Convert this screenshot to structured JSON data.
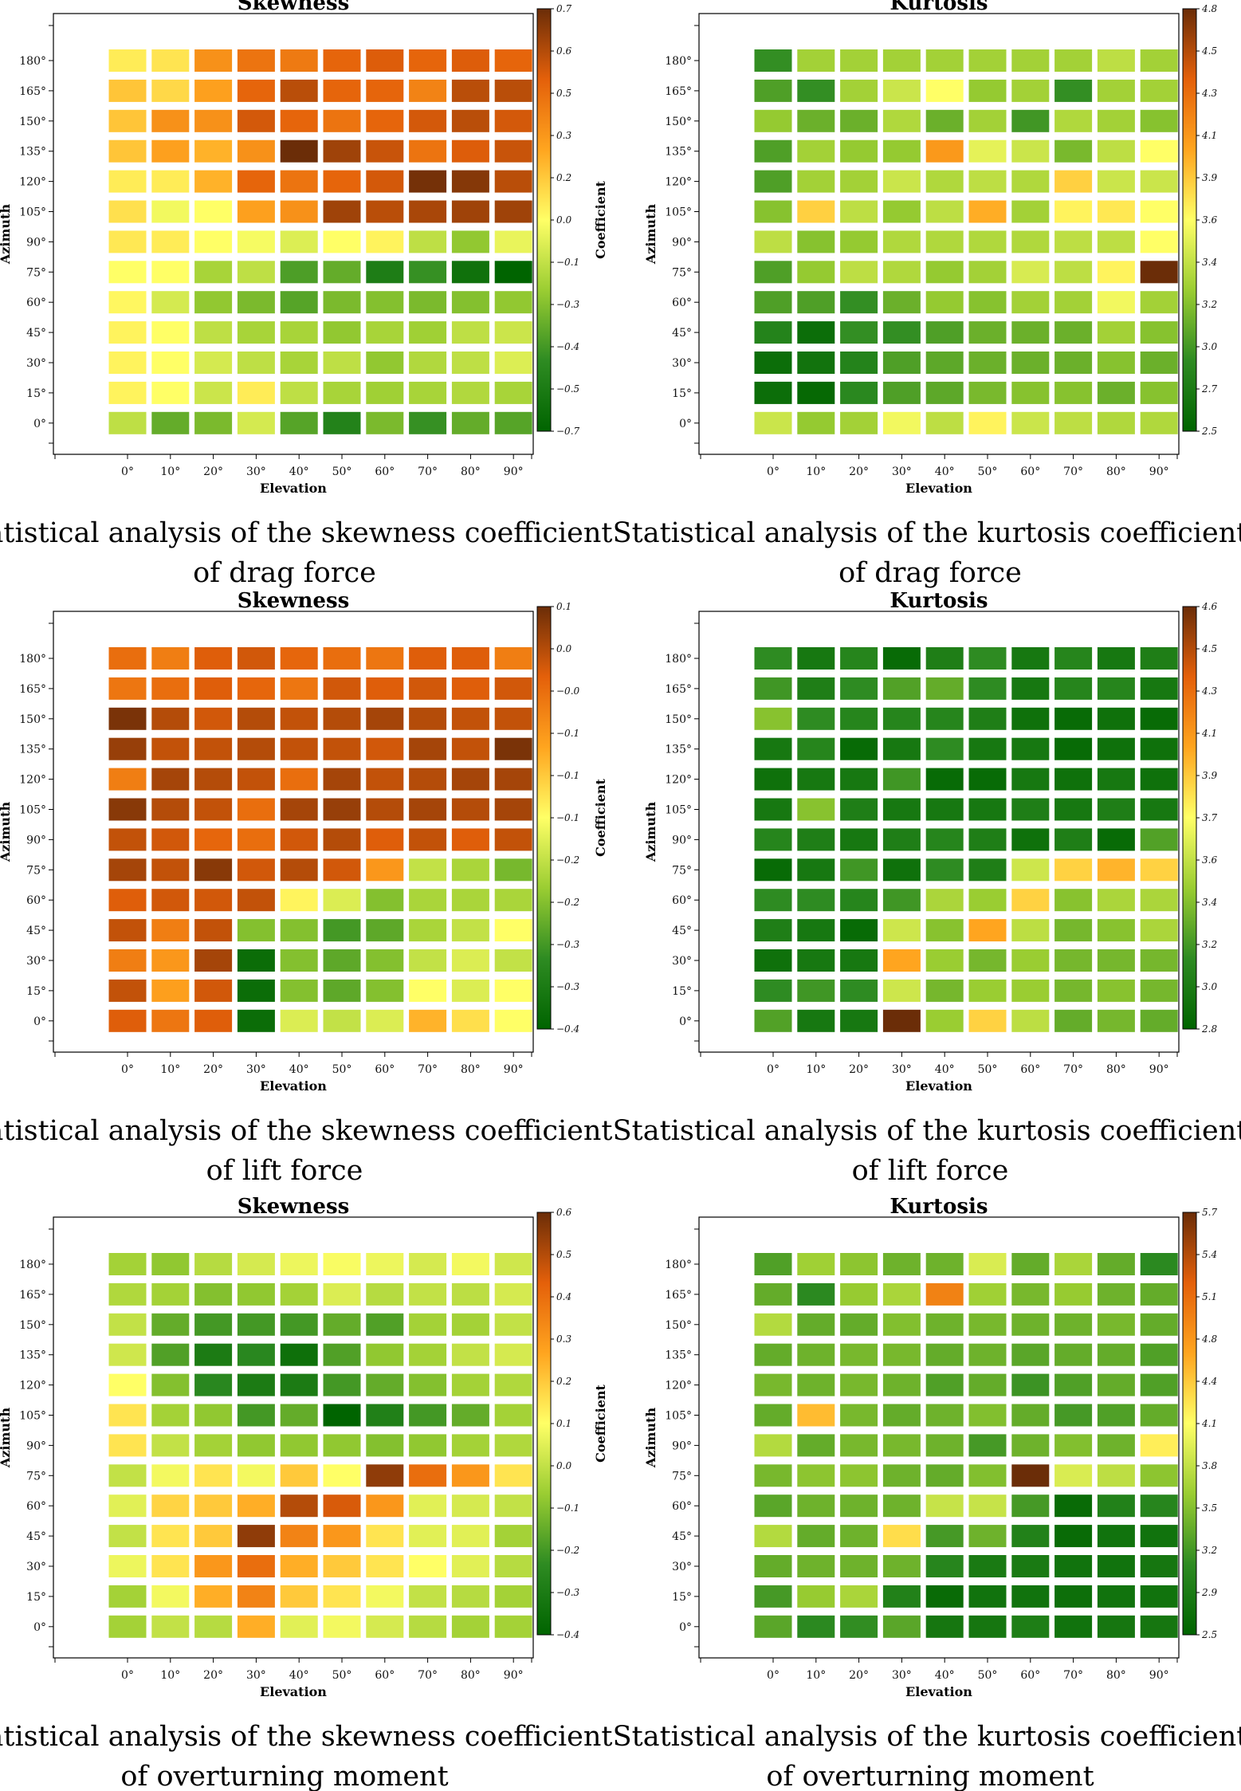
{
  "colors": [
    "#006400",
    "#2E8B22",
    "#9ACD32",
    "#FFFF66",
    "#FFA51F",
    "#E4600A",
    "#6B2D08"
  ],
  "chart_data": [
    {
      "type": "heatmap",
      "title": "Skewness",
      "xlabel": "Elevation",
      "ylabel": "Azimuth",
      "colorbar_label": "Coefficient",
      "x_ticks": [
        "0°",
        "10°",
        "20°",
        "30°",
        "40°",
        "50°",
        "60°",
        "70°",
        "80°",
        "90°"
      ],
      "y_ticks": [
        "180°",
        "165°",
        "150°",
        "135°",
        "120°",
        "105°",
        "90°",
        "75°",
        "60°",
        "45°",
        "30°",
        "15°",
        "0°"
      ],
      "colorbar_ticks": [
        "0.7",
        "0.6",
        "0.5",
        "0.3",
        "0.2",
        "0.0",
        "−0.1",
        "−0.3",
        "−0.4",
        "−0.5",
        "−0.7"
      ],
      "vmin": -0.7,
      "vmax": 0.7,
      "values": [
        [
          0.05,
          0.07,
          0.3,
          0.4,
          0.38,
          0.45,
          0.48,
          0.45,
          0.48,
          0.45
        ],
        [
          0.15,
          0.1,
          0.25,
          0.45,
          0.55,
          0.45,
          0.45,
          0.35,
          0.55,
          0.55
        ],
        [
          0.15,
          0.3,
          0.3,
          0.5,
          0.45,
          0.4,
          0.45,
          0.5,
          0.55,
          0.5
        ],
        [
          0.15,
          0.25,
          0.2,
          0.3,
          0.7,
          0.6,
          0.52,
          0.4,
          0.48,
          0.52
        ],
        [
          0.05,
          0.05,
          0.2,
          0.45,
          0.4,
          0.45,
          0.5,
          0.68,
          0.65,
          0.55
        ],
        [
          0.08,
          -0.03,
          0.0,
          0.25,
          0.3,
          0.6,
          0.55,
          0.58,
          0.6,
          0.6
        ],
        [
          0.06,
          0.05,
          0.0,
          -0.02,
          -0.08,
          0.0,
          0.03,
          -0.15,
          -0.25,
          -0.05
        ],
        [
          0.0,
          0.0,
          -0.2,
          -0.15,
          -0.4,
          -0.35,
          -0.55,
          -0.45,
          -0.62,
          -0.7
        ],
        [
          0.02,
          -0.1,
          -0.25,
          -0.3,
          -0.38,
          -0.3,
          -0.28,
          -0.3,
          -0.28,
          -0.25
        ],
        [
          0.03,
          0.0,
          -0.15,
          -0.2,
          -0.2,
          -0.25,
          -0.2,
          -0.22,
          -0.15,
          -0.12
        ],
        [
          0.03,
          0.0,
          -0.1,
          -0.15,
          -0.2,
          -0.15,
          -0.25,
          -0.18,
          -0.15,
          -0.08
        ],
        [
          0.03,
          0.0,
          -0.12,
          0.05,
          -0.15,
          -0.2,
          -0.22,
          -0.2,
          -0.18,
          -0.2
        ],
        [
          -0.15,
          -0.35,
          -0.3,
          -0.1,
          -0.38,
          -0.52,
          -0.3,
          -0.45,
          -0.35,
          -0.38
        ]
      ],
      "caption": [
        "Statistical analysis of the skewness coefficient",
        "of drag force"
      ]
    },
    {
      "type": "heatmap",
      "title": "Kurtosis",
      "xlabel": "Elevation",
      "ylabel": "Azimuth",
      "colorbar_label": "Coefficient",
      "x_ticks": [
        "0°",
        "10°",
        "20°",
        "30°",
        "40°",
        "50°",
        "60°",
        "70°",
        "80°",
        "90°"
      ],
      "y_ticks": [
        "180°",
        "165°",
        "150°",
        "135°",
        "120°",
        "105°",
        "90°",
        "75°",
        "60°",
        "45°",
        "30°",
        "15°",
        "0°"
      ],
      "colorbar_ticks": [
        "4.8",
        "4.5",
        "4.3",
        "4.1",
        "3.9",
        "3.6",
        "3.4",
        "3.2",
        "3.0",
        "2.7",
        "2.5"
      ],
      "vmin": 2.5,
      "vmax": 4.8,
      "values": [
        [
          2.9,
          3.3,
          3.3,
          3.3,
          3.3,
          3.3,
          3.3,
          3.3,
          3.4,
          3.3
        ],
        [
          3.0,
          2.9,
          3.3,
          3.45,
          3.65,
          3.25,
          3.3,
          2.9,
          3.3,
          3.3
        ],
        [
          3.25,
          3.1,
          3.1,
          3.35,
          3.1,
          3.3,
          2.95,
          3.35,
          3.3,
          3.2
        ],
        [
          3.0,
          3.3,
          3.25,
          3.25,
          4.1,
          3.55,
          3.45,
          3.15,
          3.4,
          3.65
        ],
        [
          3.0,
          3.3,
          3.3,
          3.45,
          3.35,
          3.4,
          3.35,
          3.85,
          3.45,
          3.45
        ],
        [
          3.2,
          3.85,
          3.4,
          3.25,
          3.4,
          4.0,
          3.3,
          3.7,
          3.75,
          3.65
        ],
        [
          3.4,
          3.2,
          3.25,
          3.35,
          3.35,
          3.35,
          3.35,
          3.4,
          3.4,
          3.65
        ],
        [
          3.0,
          3.25,
          3.4,
          3.35,
          3.25,
          3.3,
          3.5,
          3.4,
          3.7,
          4.8
        ],
        [
          3.0,
          3.0,
          2.9,
          3.1,
          3.25,
          3.2,
          3.3,
          3.3,
          3.6,
          3.3
        ],
        [
          2.8,
          2.6,
          2.9,
          2.9,
          3.0,
          3.1,
          3.1,
          3.1,
          3.3,
          3.2
        ],
        [
          2.6,
          2.65,
          2.8,
          3.0,
          3.05,
          3.1,
          3.1,
          3.1,
          3.2,
          3.1
        ],
        [
          2.6,
          2.55,
          2.85,
          3.0,
          3.05,
          3.15,
          3.2,
          3.2,
          3.1,
          3.2
        ],
        [
          3.45,
          3.25,
          3.3,
          3.6,
          3.4,
          3.7,
          3.45,
          3.4,
          3.35,
          3.35
        ]
      ],
      "caption": [
        "Statistical analysis of the kurtosis coefficient",
        "of drag force"
      ]
    },
    {
      "type": "heatmap",
      "title": "Skewness",
      "xlabel": "Elevation",
      "ylabel": "Azimuth",
      "colorbar_label": "Coefficient",
      "x_ticks": [
        "0°",
        "10°",
        "20°",
        "30°",
        "40°",
        "50°",
        "60°",
        "70°",
        "80°",
        "90°"
      ],
      "y_ticks": [
        "180°",
        "165°",
        "150°",
        "135°",
        "120°",
        "105°",
        "90°",
        "75°",
        "60°",
        "45°",
        "30°",
        "15°",
        "0°"
      ],
      "colorbar_ticks": [
        "0.1",
        "0.0",
        "−0.0",
        "−0.1",
        "−0.1",
        "−0.1",
        "−0.2",
        "−0.2",
        "−0.3",
        "−0.3",
        "−0.4"
      ],
      "vmin": -0.4,
      "vmax": 0.1,
      "values": [
        [
          0.0,
          -0.02,
          0.02,
          0.03,
          0.01,
          0.0,
          -0.01,
          0.02,
          0.02,
          -0.02
        ],
        [
          -0.01,
          0.0,
          0.02,
          0.01,
          -0.01,
          0.03,
          0.02,
          0.03,
          0.02,
          0.03
        ],
        [
          0.09,
          0.05,
          0.03,
          0.05,
          0.04,
          0.05,
          0.06,
          0.05,
          0.04,
          0.04
        ],
        [
          0.07,
          0.04,
          0.04,
          0.05,
          0.04,
          0.04,
          0.03,
          0.06,
          0.04,
          0.09
        ],
        [
          -0.02,
          0.06,
          0.05,
          0.04,
          0.0,
          0.06,
          0.04,
          0.05,
          0.06,
          0.06
        ],
        [
          0.08,
          0.05,
          0.04,
          0.0,
          0.06,
          0.07,
          0.05,
          0.06,
          0.05,
          0.06
        ],
        [
          0.04,
          0.03,
          0.01,
          0.0,
          0.03,
          0.05,
          0.02,
          0.04,
          0.02,
          0.04
        ],
        [
          0.06,
          0.04,
          0.08,
          0.03,
          0.05,
          0.03,
          -0.05,
          -0.2,
          -0.22,
          -0.26
        ],
        [
          0.02,
          0.03,
          0.03,
          0.04,
          -0.14,
          -0.18,
          -0.25,
          -0.22,
          -0.22,
          -0.22
        ],
        [
          0.04,
          -0.02,
          0.04,
          -0.25,
          -0.25,
          -0.3,
          -0.28,
          -0.22,
          -0.2,
          -0.15
        ],
        [
          -0.02,
          -0.05,
          0.06,
          -0.38,
          -0.25,
          -0.28,
          -0.25,
          -0.2,
          -0.18,
          -0.2
        ],
        [
          0.04,
          -0.06,
          0.03,
          -0.38,
          -0.25,
          -0.28,
          -0.25,
          -0.15,
          -0.18,
          -0.15
        ],
        [
          0.02,
          -0.01,
          0.02,
          -0.38,
          -0.18,
          -0.2,
          -0.18,
          -0.08,
          -0.12,
          -0.15
        ]
      ],
      "caption": [
        "Statistical analysis of the skewness coefficient",
        "of lift force"
      ]
    },
    {
      "type": "heatmap",
      "title": "Kurtosis",
      "xlabel": "Elevation",
      "ylabel": "Azimuth",
      "colorbar_label": "Coefficient",
      "x_ticks": [
        "0°",
        "10°",
        "20°",
        "30°",
        "40°",
        "50°",
        "60°",
        "70°",
        "80°",
        "90°"
      ],
      "y_ticks": [
        "180°",
        "165°",
        "150°",
        "135°",
        "120°",
        "105°",
        "90°",
        "75°",
        "60°",
        "45°",
        "30°",
        "15°",
        "0°"
      ],
      "colorbar_ticks": [
        "4.6",
        "4.5",
        "4.3",
        "4.1",
        "3.9",
        "3.7",
        "3.6",
        "3.4",
        "3.2",
        "3.0",
        "2.8"
      ],
      "vmin": 2.8,
      "vmax": 4.6,
      "values": [
        [
          3.1,
          2.95,
          3.05,
          2.85,
          3.0,
          3.1,
          2.95,
          3.05,
          2.95,
          3.0
        ],
        [
          3.15,
          3.0,
          3.1,
          3.2,
          3.25,
          3.1,
          2.95,
          3.05,
          3.05,
          2.95
        ],
        [
          3.35,
          3.1,
          3.05,
          3.05,
          3.05,
          3.0,
          2.9,
          2.85,
          2.9,
          2.85
        ],
        [
          2.95,
          3.05,
          2.85,
          2.95,
          3.1,
          2.95,
          2.95,
          2.85,
          2.9,
          2.9
        ],
        [
          2.9,
          2.95,
          2.95,
          3.15,
          2.85,
          2.85,
          2.95,
          2.9,
          2.95,
          2.9
        ],
        [
          2.95,
          3.35,
          3.0,
          2.95,
          2.95,
          2.95,
          3.0,
          2.95,
          3.0,
          2.95
        ],
        [
          3.05,
          3.0,
          2.95,
          3.0,
          3.05,
          3.0,
          2.9,
          3.0,
          2.85,
          3.2
        ],
        [
          2.85,
          2.95,
          3.15,
          2.9,
          3.1,
          3.0,
          3.55,
          3.85,
          3.95,
          3.85
        ],
        [
          3.1,
          3.1,
          3.05,
          3.15,
          3.45,
          3.4,
          3.85,
          3.35,
          3.45,
          3.45
        ],
        [
          3.0,
          2.95,
          2.85,
          3.55,
          3.35,
          4.0,
          3.5,
          3.3,
          3.35,
          3.45
        ],
        [
          2.9,
          2.95,
          2.95,
          4.0,
          3.4,
          3.3,
          3.4,
          3.3,
          3.3,
          3.3
        ],
        [
          3.1,
          3.15,
          3.1,
          3.55,
          3.3,
          3.4,
          3.4,
          3.3,
          3.35,
          3.3
        ],
        [
          3.2,
          2.95,
          2.95,
          4.6,
          3.4,
          3.85,
          3.5,
          3.25,
          3.3,
          3.25
        ]
      ],
      "caption": [
        "Statistical analysis of the kurtosis coefficient",
        "of lift force"
      ]
    },
    {
      "type": "heatmap",
      "title": "Skewness",
      "xlabel": "Elevation",
      "ylabel": "Azimuth",
      "colorbar_label": "Coefficient",
      "x_ticks": [
        "0°",
        "10°",
        "20°",
        "30°",
        "40°",
        "50°",
        "60°",
        "70°",
        "80°",
        "90°"
      ],
      "y_ticks": [
        "180°",
        "165°",
        "150°",
        "135°",
        "120°",
        "105°",
        "90°",
        "75°",
        "60°",
        "45°",
        "30°",
        "15°",
        "0°"
      ],
      "colorbar_ticks": [
        "0.6",
        "0.5",
        "0.4",
        "0.3",
        "0.2",
        "0.1",
        "0.0",
        "−0.1",
        "−0.2",
        "−0.3",
        "−0.4"
      ],
      "vmin": -0.4,
      "vmax": 0.6,
      "values": [
        [
          -0.05,
          -0.08,
          -0.02,
          0.03,
          0.07,
          0.09,
          0.07,
          0.03,
          0.08,
          0.02
        ],
        [
          -0.03,
          -0.05,
          -0.1,
          -0.08,
          -0.05,
          0.04,
          -0.02,
          0.0,
          -0.01,
          0.03
        ],
        [
          0.0,
          -0.15,
          -0.2,
          -0.2,
          -0.2,
          -0.15,
          -0.18,
          -0.05,
          -0.05,
          0.0
        ],
        [
          0.02,
          -0.18,
          -0.3,
          -0.25,
          -0.35,
          -0.18,
          -0.08,
          -0.05,
          0.0,
          0.03
        ],
        [
          0.1,
          -0.1,
          -0.25,
          -0.3,
          -0.3,
          -0.2,
          -0.15,
          -0.1,
          -0.05,
          -0.03
        ],
        [
          0.15,
          -0.05,
          -0.08,
          -0.2,
          -0.15,
          -0.4,
          -0.28,
          -0.2,
          -0.15,
          -0.05
        ],
        [
          0.15,
          0.0,
          -0.05,
          -0.08,
          -0.08,
          -0.08,
          -0.1,
          -0.08,
          -0.05,
          -0.03
        ],
        [
          0.0,
          0.08,
          0.15,
          0.08,
          0.2,
          0.1,
          0.55,
          0.4,
          0.3,
          0.15
        ],
        [
          0.05,
          0.18,
          0.2,
          0.25,
          0.5,
          0.45,
          0.3,
          0.05,
          0.03,
          0.0
        ],
        [
          0.0,
          0.15,
          0.2,
          0.55,
          0.35,
          0.3,
          0.15,
          0.05,
          0.05,
          -0.05
        ],
        [
          0.07,
          0.15,
          0.3,
          0.4,
          0.25,
          0.2,
          0.15,
          0.1,
          0.05,
          -0.02
        ],
        [
          -0.05,
          0.08,
          0.25,
          0.35,
          0.2,
          0.15,
          0.08,
          0.0,
          -0.02,
          -0.05
        ],
        [
          -0.05,
          0.0,
          -0.02,
          0.25,
          0.05,
          0.08,
          0.03,
          -0.02,
          -0.05,
          -0.05
        ]
      ],
      "caption": [
        "Statistical analysis of the skewness coefficient",
        "of overturning moment"
      ]
    },
    {
      "type": "heatmap",
      "title": "Kurtosis",
      "xlabel": "Elevation",
      "ylabel": "Azimuth",
      "colorbar_label": "Coefficient",
      "x_ticks": [
        "0°",
        "10°",
        "20°",
        "30°",
        "40°",
        "50°",
        "60°",
        "70°",
        "80°",
        "90°"
      ],
      "y_ticks": [
        "180°",
        "165°",
        "150°",
        "135°",
        "120°",
        "105°",
        "90°",
        "75°",
        "60°",
        "45°",
        "30°",
        "15°",
        "0°"
      ],
      "colorbar_ticks": [
        "5.7",
        "5.4",
        "5.1",
        "4.8",
        "4.4",
        "4.1",
        "3.8",
        "3.5",
        "3.2",
        "2.9",
        "2.5"
      ],
      "vmin": 2.5,
      "vmax": 5.7,
      "values": [
        [
          3.2,
          3.6,
          3.5,
          3.35,
          3.35,
          3.9,
          3.3,
          3.65,
          3.3,
          3.0
        ],
        [
          3.3,
          3.0,
          3.55,
          3.65,
          4.9,
          3.6,
          3.4,
          3.55,
          3.35,
          3.3
        ],
        [
          3.7,
          3.3,
          3.3,
          3.45,
          3.35,
          3.4,
          3.35,
          3.35,
          3.4,
          3.3
        ],
        [
          3.3,
          3.35,
          3.4,
          3.4,
          3.3,
          3.35,
          3.25,
          3.3,
          3.3,
          3.2
        ],
        [
          3.4,
          3.35,
          3.4,
          3.35,
          3.2,
          3.3,
          3.1,
          3.2,
          3.3,
          3.2
        ],
        [
          3.3,
          4.5,
          3.4,
          3.3,
          3.35,
          3.45,
          3.3,
          3.15,
          3.2,
          3.3
        ],
        [
          3.7,
          3.3,
          3.4,
          3.4,
          3.35,
          3.15,
          3.35,
          3.45,
          3.35,
          4.2
        ],
        [
          3.4,
          3.5,
          3.5,
          3.35,
          3.3,
          3.45,
          5.7,
          3.9,
          3.75,
          3.5
        ],
        [
          3.25,
          3.35,
          3.35,
          3.35,
          3.8,
          3.8,
          3.15,
          2.6,
          2.9,
          2.95
        ],
        [
          3.7,
          3.3,
          3.35,
          4.3,
          3.15,
          3.35,
          2.9,
          2.6,
          2.7,
          2.7
        ],
        [
          3.3,
          3.35,
          3.35,
          3.35,
          2.95,
          2.8,
          2.8,
          2.7,
          2.7,
          2.75
        ],
        [
          3.15,
          3.55,
          3.65,
          2.9,
          2.6,
          2.7,
          2.7,
          2.65,
          2.7,
          2.7
        ],
        [
          3.25,
          3.0,
          3.05,
          3.25,
          2.75,
          2.75,
          2.85,
          2.7,
          2.75,
          2.75
        ]
      ],
      "caption": [
        "Statistical analysis of the kurtosis coefficient",
        "of overturning moment"
      ]
    }
  ]
}
